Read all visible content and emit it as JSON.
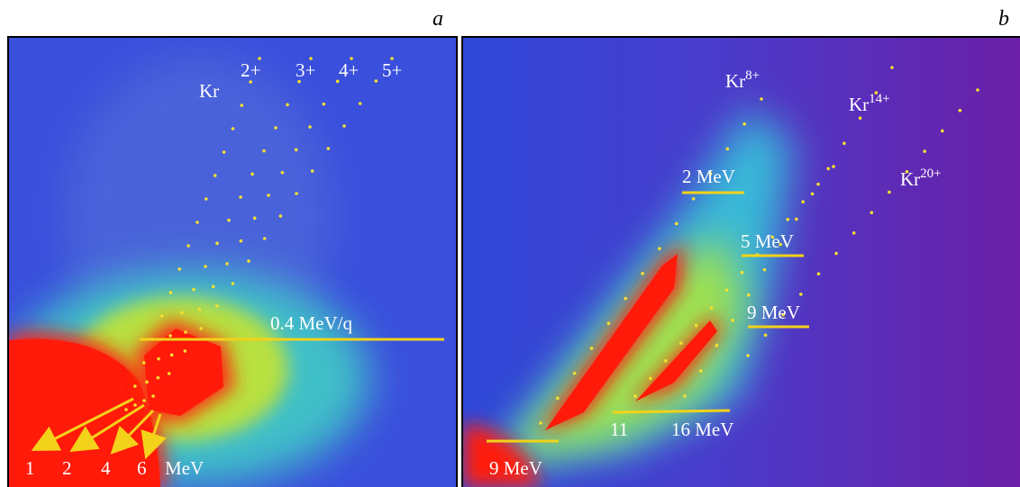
{
  "panels": [
    {
      "letter": "a",
      "ion": "Kr",
      "charge_states": [
        "2+",
        "3+",
        "4+",
        "5+"
      ],
      "energy_line": "0.4 MeV/q",
      "energies": [
        "1",
        "2",
        "4",
        "6"
      ],
      "energy_unit": "MeV"
    },
    {
      "letter": "b",
      "ions": [
        {
          "symbol": "Kr",
          "charge": "8+"
        },
        {
          "symbol": "Kr",
          "charge": "14+"
        },
        {
          "symbol": "Kr",
          "charge": "20+"
        }
      ],
      "energy_labels": [
        "2 MeV",
        "5 MeV",
        "9 MeV",
        "11",
        "16 MeV",
        "9 MeV"
      ]
    }
  ]
}
